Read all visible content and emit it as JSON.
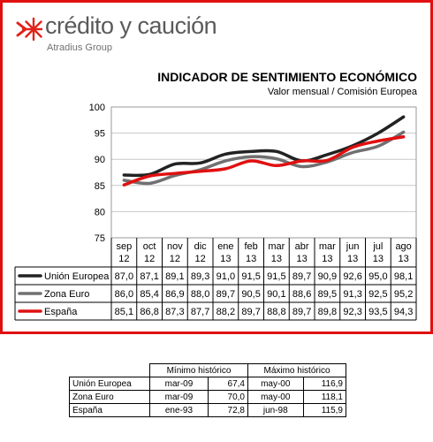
{
  "brand": {
    "name": "crédito y caución",
    "group": "Atradius Group",
    "colors": {
      "mark": "#e2231a",
      "text": "#5a5a5a"
    }
  },
  "frame_color": "#e01010",
  "chart_data": {
    "type": "line",
    "title": "INDICADOR DE SENTIMIENTO ECONÓMICO",
    "subtitle": "Valor mensual / Comisión Europea",
    "ylim": [
      75,
      100
    ],
    "yticks": [
      "100",
      "95",
      "90",
      "85",
      "80",
      "75"
    ],
    "grid": true,
    "categories": [
      [
        "sep",
        "12"
      ],
      [
        "oct",
        "12"
      ],
      [
        "nov",
        "12"
      ],
      [
        "dic",
        "12"
      ],
      [
        "ene",
        "13"
      ],
      [
        "feb",
        "13"
      ],
      [
        "mar",
        "13"
      ],
      [
        "abr",
        "13"
      ],
      [
        "mar",
        "13"
      ],
      [
        "jun",
        "13"
      ],
      [
        "jul",
        "13"
      ],
      [
        "ago",
        "13"
      ]
    ],
    "series": [
      {
        "name": "Unión Europea",
        "color": "#222222",
        "values": [
          87.0,
          87.1,
          89.1,
          89.3,
          91.0,
          91.5,
          91.5,
          89.7,
          90.9,
          92.6,
          95.0,
          98.1
        ],
        "labels": [
          "87,0",
          "87,1",
          "89,1",
          "89,3",
          "91,0",
          "91,5",
          "91,5",
          "89,7",
          "90,9",
          "92,6",
          "95,0",
          "98,1"
        ]
      },
      {
        "name": "Zona Euro",
        "color": "#707070",
        "values": [
          86.0,
          85.4,
          86.9,
          88.0,
          89.7,
          90.5,
          90.1,
          88.6,
          89.5,
          91.3,
          92.5,
          95.2
        ],
        "labels": [
          "86,0",
          "85,4",
          "86,9",
          "88,0",
          "89,7",
          "90,5",
          "90,1",
          "88,6",
          "89,5",
          "91,3",
          "92,5",
          "95,2"
        ]
      },
      {
        "name": "España",
        "color": "#e01010",
        "values": [
          85.1,
          86.8,
          87.3,
          87.7,
          88.2,
          89.7,
          88.8,
          89.7,
          89.8,
          92.3,
          93.5,
          94.3
        ],
        "labels": [
          "85,1",
          "86,8",
          "87,3",
          "87,7",
          "88,2",
          "89,7",
          "88,8",
          "89,7",
          "89,8",
          "92,3",
          "93,5",
          "94,3"
        ]
      }
    ]
  },
  "reference_table": {
    "headers": [
      "Mínimo histórico",
      "Máximo histórico"
    ],
    "rows": [
      {
        "name": "Unión Europea",
        "min_date": "mar-09",
        "min_value": "67,4",
        "max_date": "may-00",
        "max_value": "116,9"
      },
      {
        "name": "Zona Euro",
        "min_date": "mar-09",
        "min_value": "70,0",
        "max_date": "may-00",
        "max_value": "118,1"
      },
      {
        "name": "España",
        "min_date": "ene-93",
        "min_value": "72,8",
        "max_date": "jun-98",
        "max_value": "115,9"
      }
    ]
  }
}
